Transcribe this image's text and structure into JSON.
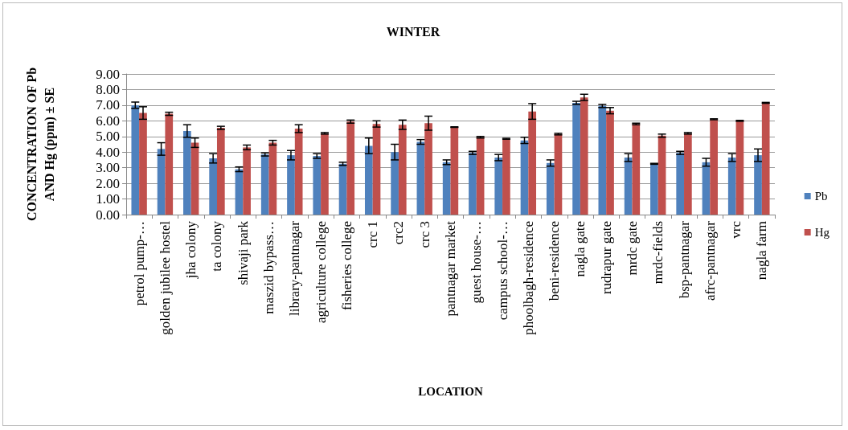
{
  "chart_data": {
    "type": "bar",
    "title": "WINTER",
    "xlabel": "LOCATION",
    "ylabel": "CONCENTRATION OF Pb AND Hg (ppm) ± SE",
    "categories": [
      "petrol pump-…",
      "golden jubilee hostel",
      "jha colony",
      "ta colony",
      "shivaji park",
      "maszid bypass…",
      "library-pantnagar",
      "agriculture college",
      "fisheries college",
      "crc 1",
      "crc2",
      "crc 3",
      "pantnagar market",
      "guest house-…",
      "campus school-…",
      "phoolbagh-residence",
      "beni-residence",
      "nagla gate",
      "rudrapur gate",
      "mrdc gate",
      "mrdc-fields",
      "bsp-pantnagar",
      "afrc-pantnagar",
      "vrc",
      "nagla farm"
    ],
    "series": [
      {
        "name": "Pb",
        "color": "#4f81bd",
        "values": [
          7.0,
          4.2,
          5.35,
          3.6,
          2.9,
          3.85,
          3.8,
          3.75,
          3.25,
          4.4,
          4.0,
          4.65,
          3.35,
          3.95,
          3.65,
          4.75,
          3.3,
          7.15,
          6.95,
          3.65,
          3.25,
          3.95,
          3.35,
          3.65,
          3.8
        ],
        "errors": [
          0.2,
          0.4,
          0.4,
          0.3,
          0.15,
          0.1,
          0.3,
          0.15,
          0.1,
          0.5,
          0.5,
          0.15,
          0.15,
          0.1,
          0.2,
          0.2,
          0.2,
          0.1,
          0.1,
          0.25,
          0.03,
          0.1,
          0.25,
          0.25,
          0.4
        ]
      },
      {
        "name": "Hg",
        "color": "#c0504d",
        "values": [
          6.5,
          6.45,
          4.6,
          5.55,
          4.3,
          4.6,
          5.5,
          5.2,
          5.95,
          5.8,
          5.75,
          5.85,
          5.6,
          4.95,
          4.85,
          6.6,
          5.15,
          7.5,
          6.65,
          5.8,
          5.05,
          5.2,
          6.1,
          6.0,
          7.15
        ],
        "errors": [
          0.4,
          0.1,
          0.3,
          0.1,
          0.15,
          0.15,
          0.25,
          0.05,
          0.1,
          0.2,
          0.3,
          0.45,
          0.02,
          0.05,
          0.03,
          0.5,
          0.05,
          0.2,
          0.2,
          0.05,
          0.1,
          0.05,
          0.03,
          0.03,
          0.03
        ]
      }
    ],
    "ylim": [
      0,
      9
    ],
    "yticks": [
      {
        "value": 0,
        "label": "0.00"
      },
      {
        "value": 1,
        "label": "1.00"
      },
      {
        "value": 2,
        "label": "2.00"
      },
      {
        "value": 3,
        "label": "3.00"
      },
      {
        "value": 4,
        "label": "4.00"
      },
      {
        "value": 5,
        "label": "5.00"
      },
      {
        "value": 6,
        "label": "6.00"
      },
      {
        "value": 7,
        "label": "7.00"
      },
      {
        "value": 8,
        "label": "8.00"
      },
      {
        "value": 9,
        "label": "9.00"
      }
    ],
    "grid": "y",
    "legend": "right"
  }
}
